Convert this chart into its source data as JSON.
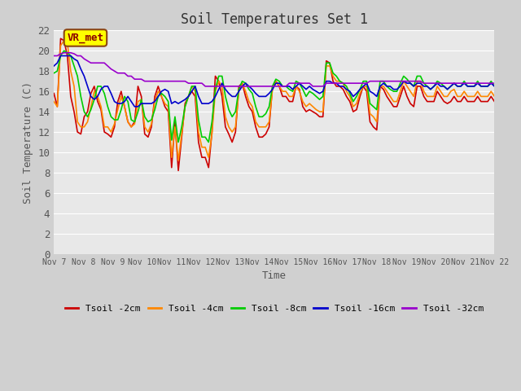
{
  "title": "Soil Temperatures Set 1",
  "xlabel": "Time",
  "ylabel": "Soil Temperature (C)",
  "ylim": [
    0,
    22
  ],
  "yticks": [
    0,
    2,
    4,
    6,
    8,
    10,
    12,
    14,
    16,
    18,
    20,
    22
  ],
  "xtick_labels": [
    "Nov 7",
    "Nov 8",
    "Nov 9",
    "Nov 10",
    "Nov 11",
    "Nov 12",
    "Nov 13",
    "Nov 14",
    "Nov 15",
    "Nov 16",
    "Nov 17",
    "Nov 18",
    "Nov 19",
    "Nov 20",
    "Nov 21",
    "Nov 22"
  ],
  "legend_labels": [
    "Tsoil -2cm",
    "Tsoil -4cm",
    "Tsoil -8cm",
    "Tsoil -16cm",
    "Tsoil -32cm"
  ],
  "series_colors": [
    "#cc0000",
    "#ff8800",
    "#00cc00",
    "#0000cc",
    "#9900cc"
  ],
  "annotation_text": "VR_met",
  "annotation_bg": "#ffff00",
  "annotation_border": "#8b4513",
  "t2cm": [
    15.8,
    14.5,
    21.2,
    21.0,
    19.5,
    15.5,
    14.0,
    12.0,
    11.8,
    13.5,
    14.0,
    15.8,
    16.5,
    15.0,
    14.2,
    12.0,
    11.8,
    11.5,
    12.5,
    15.0,
    16.0,
    14.5,
    13.0,
    12.5,
    13.0,
    16.5,
    15.5,
    11.8,
    11.5,
    12.5,
    15.5,
    16.5,
    15.5,
    14.5,
    14.0,
    8.5,
    13.0,
    8.2,
    11.5,
    14.8,
    15.5,
    16.0,
    15.5,
    11.0,
    9.5,
    9.5,
    8.5,
    12.0,
    17.5,
    17.0,
    15.5,
    12.5,
    11.8,
    11.0,
    12.0,
    16.5,
    16.8,
    15.5,
    14.5,
    14.0,
    12.5,
    11.5,
    11.5,
    11.8,
    12.5,
    16.5,
    17.0,
    16.5,
    15.5,
    15.5,
    15.0,
    15.0,
    16.5,
    16.2,
    14.5,
    14.0,
    14.2,
    14.0,
    13.8,
    13.5,
    13.5,
    19.0,
    18.8,
    17.0,
    16.5,
    16.5,
    16.2,
    15.5,
    15.0,
    14.0,
    14.2,
    15.5,
    16.5,
    16.0,
    13.0,
    12.5,
    12.2,
    16.5,
    16.2,
    15.5,
    15.0,
    14.5,
    14.5,
    15.5,
    16.5,
    15.5,
    14.8,
    14.5,
    16.5,
    16.5,
    15.5,
    15.0,
    15.0,
    15.0,
    16.0,
    15.5,
    15.0,
    14.8,
    15.0,
    15.5,
    15.0,
    15.0,
    15.5,
    15.0,
    15.0,
    15.0,
    15.5,
    15.0,
    15.0,
    15.0,
    15.5,
    15.0
  ],
  "t4cm": [
    15.0,
    14.5,
    20.5,
    21.0,
    20.8,
    18.0,
    16.5,
    13.0,
    12.5,
    12.5,
    13.0,
    14.5,
    16.0,
    15.5,
    14.5,
    12.5,
    12.5,
    12.0,
    12.8,
    14.2,
    15.5,
    14.5,
    13.0,
    12.5,
    12.8,
    15.0,
    15.2,
    12.5,
    12.0,
    12.8,
    15.0,
    16.0,
    15.5,
    14.8,
    14.5,
    9.5,
    12.5,
    9.2,
    11.8,
    14.5,
    15.5,
    16.5,
    16.0,
    12.0,
    10.5,
    10.5,
    9.5,
    11.8,
    16.0,
    17.0,
    16.5,
    13.5,
    12.5,
    12.0,
    12.5,
    16.0,
    16.8,
    16.0,
    15.0,
    14.5,
    13.0,
    12.5,
    12.5,
    12.5,
    13.0,
    16.2,
    17.0,
    16.5,
    16.0,
    16.0,
    15.5,
    15.5,
    16.5,
    16.0,
    15.0,
    14.5,
    14.8,
    14.5,
    14.2,
    14.0,
    14.0,
    18.5,
    18.5,
    17.5,
    17.0,
    17.0,
    16.8,
    16.0,
    15.5,
    14.5,
    14.8,
    15.8,
    16.5,
    16.5,
    13.8,
    13.5,
    13.0,
    16.5,
    16.5,
    16.0,
    15.5,
    15.0,
    15.0,
    16.0,
    17.0,
    16.5,
    16.0,
    15.5,
    17.0,
    17.0,
    16.0,
    15.5,
    15.5,
    15.5,
    16.5,
    16.0,
    15.5,
    15.5,
    16.0,
    16.2,
    15.5,
    15.5,
    16.0,
    15.5,
    15.5,
    15.5,
    16.0,
    15.5,
    15.5,
    15.5,
    16.0,
    15.5
  ],
  "t8cm": [
    17.8,
    18.0,
    19.5,
    20.0,
    19.8,
    19.5,
    18.5,
    17.5,
    15.5,
    14.0,
    13.5,
    14.2,
    15.2,
    16.5,
    16.5,
    15.8,
    14.5,
    13.5,
    13.2,
    13.2,
    14.2,
    15.5,
    15.0,
    13.2,
    13.0,
    14.0,
    15.2,
    13.5,
    13.0,
    13.2,
    14.2,
    15.5,
    15.8,
    15.5,
    15.0,
    11.2,
    13.5,
    11.0,
    12.5,
    14.5,
    15.5,
    16.5,
    16.5,
    13.2,
    11.5,
    11.5,
    11.0,
    13.0,
    16.2,
    17.5,
    17.5,
    15.5,
    14.2,
    13.5,
    14.0,
    16.2,
    17.0,
    16.8,
    16.2,
    15.8,
    14.5,
    13.5,
    13.5,
    13.8,
    14.5,
    16.5,
    17.2,
    17.0,
    16.5,
    16.5,
    16.2,
    16.0,
    17.0,
    16.8,
    16.2,
    15.5,
    16.0,
    15.8,
    15.5,
    15.2,
    15.5,
    18.8,
    18.8,
    17.8,
    17.5,
    17.0,
    16.8,
    16.5,
    15.8,
    15.0,
    15.5,
    16.2,
    17.0,
    17.0,
    14.8,
    14.5,
    14.2,
    17.0,
    17.0,
    16.5,
    16.2,
    16.0,
    16.0,
    16.8,
    17.5,
    17.2,
    16.8,
    16.5,
    17.5,
    17.5,
    16.8,
    16.5,
    16.2,
    16.5,
    17.0,
    16.8,
    16.5,
    16.2,
    16.5,
    16.8,
    16.5,
    16.5,
    17.0,
    16.5,
    16.5,
    16.5,
    17.0,
    16.5,
    16.5,
    16.5,
    17.0,
    16.5
  ],
  "t16cm": [
    18.5,
    18.8,
    19.5,
    19.5,
    19.5,
    19.5,
    19.2,
    19.0,
    18.2,
    17.5,
    16.5,
    15.5,
    15.2,
    15.5,
    16.2,
    16.5,
    16.5,
    15.8,
    15.0,
    14.8,
    14.8,
    15.0,
    15.5,
    15.0,
    14.5,
    14.5,
    14.8,
    14.8,
    14.8,
    14.8,
    15.0,
    15.5,
    16.0,
    16.2,
    16.0,
    14.8,
    15.0,
    14.8,
    15.0,
    15.2,
    15.5,
    16.0,
    16.5,
    15.5,
    14.8,
    14.8,
    14.8,
    15.0,
    15.5,
    16.2,
    16.8,
    16.2,
    15.8,
    15.5,
    15.5,
    16.0,
    16.5,
    16.8,
    16.5,
    16.2,
    15.8,
    15.5,
    15.5,
    15.5,
    15.8,
    16.2,
    16.8,
    16.8,
    16.5,
    16.5,
    16.5,
    16.2,
    16.5,
    16.8,
    16.5,
    16.2,
    16.5,
    16.2,
    16.0,
    15.8,
    16.0,
    17.0,
    17.0,
    16.8,
    16.8,
    16.5,
    16.5,
    16.2,
    16.0,
    15.5,
    15.8,
    16.2,
    16.5,
    16.8,
    16.0,
    15.8,
    15.5,
    16.5,
    16.8,
    16.5,
    16.5,
    16.2,
    16.2,
    16.5,
    17.0,
    16.8,
    16.8,
    16.5,
    16.8,
    16.8,
    16.5,
    16.5,
    16.2,
    16.5,
    16.8,
    16.5,
    16.5,
    16.2,
    16.5,
    16.8,
    16.5,
    16.5,
    16.8,
    16.5,
    16.5,
    16.5,
    16.8,
    16.5,
    16.5,
    16.5,
    16.8,
    16.5
  ],
  "t32cm": [
    19.5,
    19.5,
    19.7,
    19.8,
    19.8,
    19.8,
    19.7,
    19.5,
    19.5,
    19.2,
    19.0,
    18.8,
    18.8,
    18.8,
    18.8,
    18.8,
    18.5,
    18.2,
    18.0,
    17.8,
    17.8,
    17.8,
    17.5,
    17.5,
    17.2,
    17.2,
    17.2,
    17.0,
    17.0,
    17.0,
    17.0,
    17.0,
    17.0,
    17.0,
    17.0,
    17.0,
    17.0,
    17.0,
    17.0,
    17.0,
    16.8,
    16.8,
    16.8,
    16.8,
    16.8,
    16.5,
    16.5,
    16.5,
    16.5,
    16.5,
    16.5,
    16.5,
    16.5,
    16.5,
    16.5,
    16.5,
    16.5,
    16.5,
    16.5,
    16.5,
    16.5,
    16.5,
    16.5,
    16.5,
    16.5,
    16.5,
    16.5,
    16.5,
    16.5,
    16.5,
    16.8,
    16.8,
    16.8,
    16.8,
    16.8,
    16.8,
    16.8,
    16.5,
    16.5,
    16.5,
    16.5,
    16.8,
    16.8,
    16.8,
    16.8,
    16.8,
    16.8,
    16.8,
    16.8,
    16.8,
    16.8,
    16.8,
    16.8,
    16.8,
    17.0,
    17.0,
    17.0,
    17.0,
    17.0,
    17.0,
    17.0,
    17.0,
    17.0,
    17.0,
    17.0,
    17.0,
    17.0,
    17.0,
    17.0,
    17.0,
    16.8,
    16.8,
    16.8,
    16.8,
    16.8,
    16.8,
    16.8,
    16.8,
    16.8,
    16.8,
    16.8,
    16.8,
    16.8,
    16.8,
    16.8,
    16.8,
    16.8,
    16.8,
    16.8,
    16.8,
    16.8,
    16.8
  ]
}
